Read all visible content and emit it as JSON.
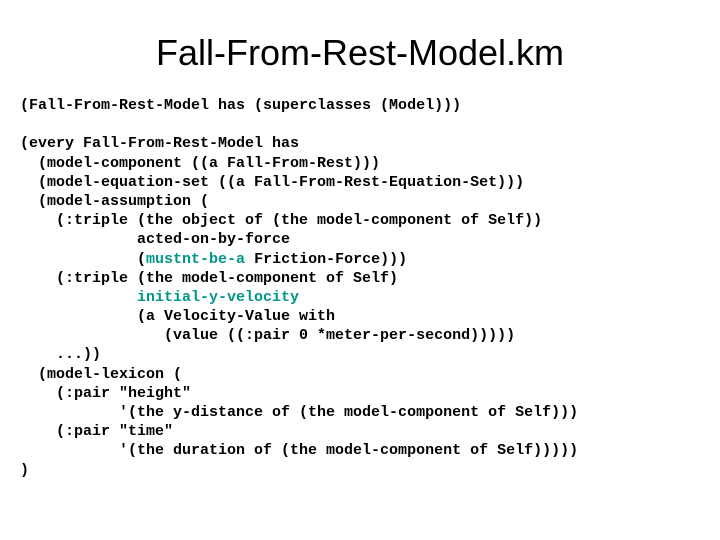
{
  "title": {
    "text": "Fall-From-Rest-Model.km",
    "fontsize": 36,
    "color": "#000000"
  },
  "code": {
    "fontsize": 15,
    "base_color": "#000000",
    "highlight_color": "#009688",
    "font": "Courier New",
    "lines": [
      "(Fall-From-Rest-Model has (superclasses (Model)))",
      "",
      "(every Fall-From-Rest-Model has",
      "  (model-component ((a Fall-From-Rest)))",
      "  (model-equation-set ((a Fall-From-Rest-Equation-Set)))",
      "  (model-assumption (",
      "    (:triple (the object of (the model-component of Self))",
      "             acted-on-by-force",
      "             (mustnt-be-a Friction-Force)))",
      "    (:triple (the model-component of Self)",
      "             initial-y-velocity",
      "             (a Velocity-Value with",
      "                (value ((:pair 0 *meter-per-second)))))",
      "    ...))",
      "  (model-lexicon (",
      "    (:pair \"height\"",
      "           '(the y-distance of (the model-component of Self)))",
      "    (:pair \"time\"",
      "           '(the duration of (the model-component of Self)))))",
      ")"
    ],
    "highlights": {
      "8": "mustnt-be-a",
      "10": "initial-y-velocity"
    }
  },
  "background_color": "#ffffff"
}
